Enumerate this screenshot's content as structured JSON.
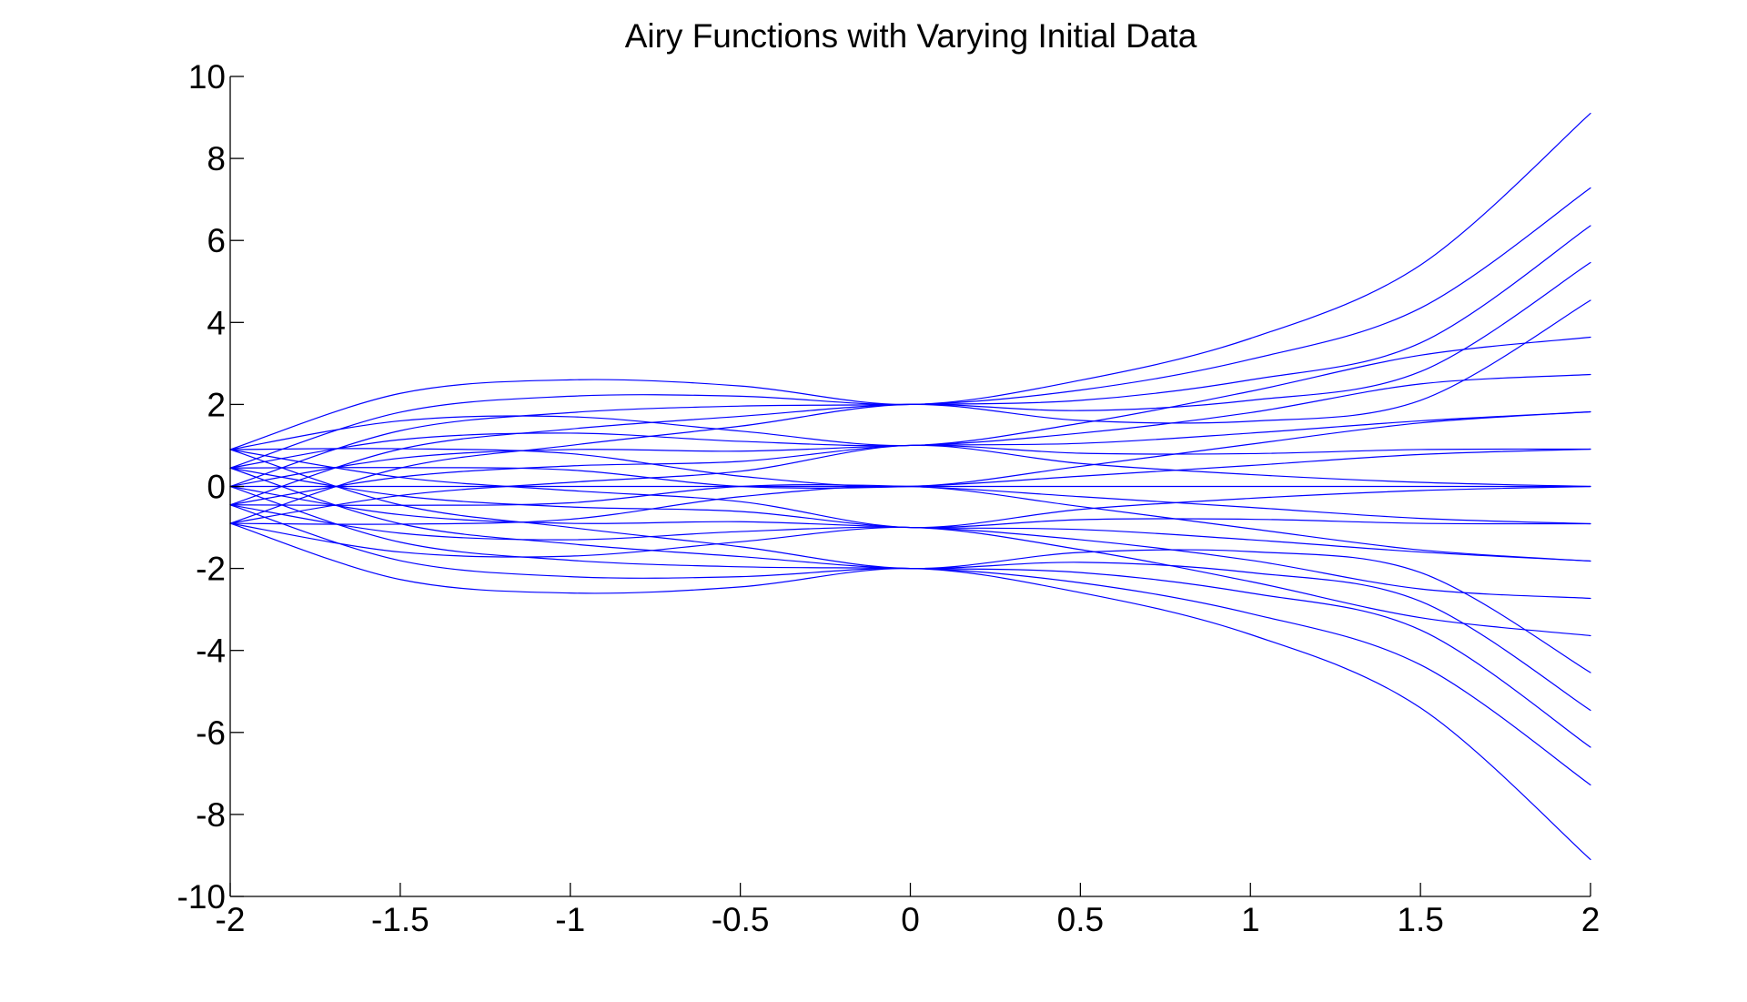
{
  "chart_data": {
    "type": "line",
    "title": "Airy Functions with Varying Initial Data",
    "xlabel": "",
    "ylabel": "",
    "xlim": [
      -2,
      2
    ],
    "ylim": [
      -10,
      10
    ],
    "x_ticks": [
      -2,
      -1.5,
      -1,
      -0.5,
      0,
      0.5,
      1,
      1.5,
      2
    ],
    "x_tick_labels": [
      "-2",
      "-1.5",
      "-1",
      "-0.5",
      "0",
      "0.5",
      "1",
      "1.5",
      "2"
    ],
    "y_ticks": [
      -10,
      -8,
      -6,
      -4,
      -2,
      0,
      2,
      4,
      6,
      8,
      10
    ],
    "y_tick_labels": [
      "-10",
      "-8",
      "-6",
      "-4",
      "-2",
      "0",
      "2",
      "4",
      "6",
      "8",
      "10"
    ],
    "grid": false,
    "legend": "none",
    "line_color": "#0000ff",
    "x": [
      -2,
      -1.5,
      -1,
      -0.5,
      0,
      0.5,
      1,
      1.5,
      2
    ],
    "series": [
      {
        "values": [
          0.9,
          2.27,
          2.6,
          2.45,
          2.0,
          2.59,
          3.61,
          5.4,
          9.1
        ]
      },
      {
        "values": [
          0.45,
          1.81,
          2.2,
          2.2,
          2.0,
          2.35,
          3.1,
          4.35,
          7.28
        ]
      },
      {
        "values": [
          0.0,
          1.36,
          1.8,
          1.96,
          2.0,
          2.1,
          2.6,
          3.5,
          6.36
        ]
      },
      {
        "values": [
          -0.45,
          0.91,
          1.4,
          1.71,
          2.0,
          1.85,
          2.1,
          2.8,
          5.46
        ]
      },
      {
        "values": [
          -0.9,
          0.45,
          1.0,
          1.47,
          2.0,
          1.61,
          1.59,
          2.1,
          4.54
        ]
      },
      {
        "values": [
          0.9,
          1.6,
          1.7,
          1.35,
          1.0,
          1.54,
          2.32,
          3.2,
          3.64
        ]
      },
      {
        "values": [
          0.45,
          1.14,
          1.3,
          1.1,
          1.0,
          1.3,
          1.8,
          2.5,
          2.73
        ]
      },
      {
        "values": [
          0.0,
          0.69,
          0.9,
          0.86,
          1.0,
          1.05,
          1.3,
          1.6,
          1.82
        ]
      },
      {
        "values": [
          -0.45,
          0.23,
          0.5,
          0.61,
          1.0,
          0.81,
          0.8,
          0.9,
          0.91
        ]
      },
      {
        "values": [
          -0.9,
          -0.22,
          0.1,
          0.37,
          1.0,
          0.56,
          0.29,
          0.1,
          0.0
        ]
      },
      {
        "values": [
          0.9,
          0.92,
          0.8,
          0.25,
          0.0,
          0.49,
          1.03,
          1.55,
          1.82
        ]
      },
      {
        "values": [
          0.45,
          0.46,
          0.4,
          0.0,
          0.0,
          0.25,
          0.51,
          0.78,
          0.91
        ]
      },
      {
        "values": [
          0.0,
          0.0,
          0.0,
          0.0,
          0.0,
          0.0,
          0.0,
          0.0,
          0.0
        ]
      },
      {
        "values": [
          -0.45,
          -0.46,
          -0.4,
          0.0,
          0.0,
          -0.25,
          -0.51,
          -0.78,
          -0.91
        ]
      },
      {
        "values": [
          -0.9,
          -0.92,
          -0.8,
          -0.25,
          0.0,
          -0.49,
          -1.03,
          -1.55,
          -1.82
        ]
      },
      {
        "values": [
          0.9,
          0.22,
          -0.1,
          -0.37,
          -1.0,
          -0.56,
          -0.29,
          -0.1,
          0.0
        ]
      },
      {
        "values": [
          0.45,
          -0.23,
          -0.5,
          -0.61,
          -1.0,
          -0.81,
          -0.8,
          -0.9,
          -0.91
        ]
      },
      {
        "values": [
          0.0,
          -0.69,
          -0.9,
          -0.86,
          -1.0,
          -1.05,
          -1.3,
          -1.6,
          -1.82
        ]
      },
      {
        "values": [
          -0.45,
          -1.14,
          -1.3,
          -1.1,
          -1.0,
          -1.3,
          -1.8,
          -2.5,
          -2.73
        ]
      },
      {
        "values": [
          -0.9,
          -1.6,
          -1.7,
          -1.35,
          -1.0,
          -1.54,
          -2.32,
          -3.2,
          -3.64
        ]
      },
      {
        "values": [
          0.9,
          -0.45,
          -1.0,
          -1.47,
          -2.0,
          -1.61,
          -1.59,
          -2.1,
          -4.54
        ]
      },
      {
        "values": [
          0.45,
          -0.91,
          -1.4,
          -1.71,
          -2.0,
          -1.85,
          -2.1,
          -2.8,
          -5.46
        ]
      },
      {
        "values": [
          0.0,
          -1.36,
          -1.8,
          -1.96,
          -2.0,
          -2.1,
          -2.6,
          -3.5,
          -6.36
        ]
      },
      {
        "values": [
          -0.45,
          -1.81,
          -2.2,
          -2.2,
          -2.0,
          -2.35,
          -3.1,
          -4.35,
          -7.28
        ]
      },
      {
        "values": [
          -0.9,
          -2.27,
          -2.6,
          -2.45,
          -2.0,
          -2.59,
          -3.61,
          -5.4,
          -9.1
        ]
      }
    ]
  }
}
